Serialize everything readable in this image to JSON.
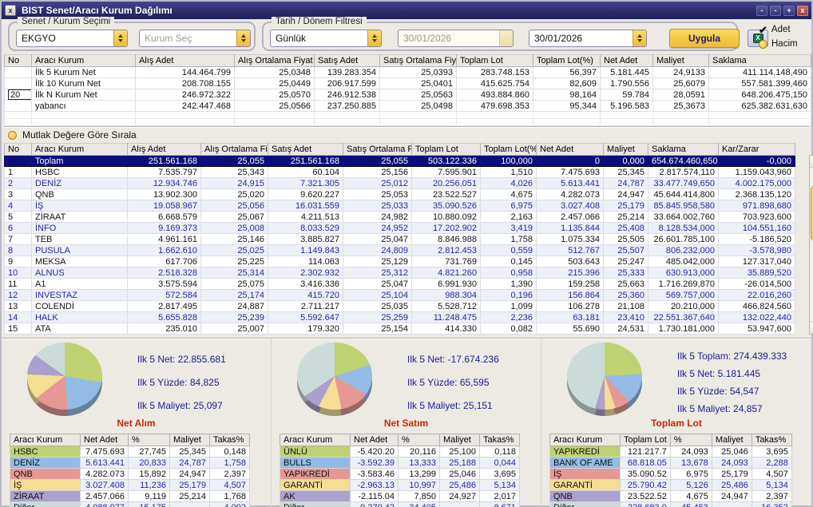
{
  "window": {
    "title": "BIST Senet/Aracı Kurum Dağılımı",
    "close_left_glyph": "x",
    "controls": {
      "minimize": "-",
      "restore": "-",
      "maximize": "+",
      "close": "x"
    }
  },
  "filters": {
    "group1_label": "Senet / Kurum Seçimi",
    "senet_value": "EKGYO",
    "kurum_placeholder": "Kurum Seç",
    "group2_label": "Tarih / Dönem Filtresi",
    "period_value": "Günlük",
    "date_from": "30/01/2026",
    "date_to": "30/01/2026",
    "apply_label": "Uygula",
    "adet_check_glyph": "✔",
    "radio_adet_label": "Adet",
    "radio_hacim_label": "Hacim"
  },
  "sort_label": "Mutlak Değere Göre Sırala",
  "summary_table": {
    "headers": [
      "No",
      "Aracı Kurum",
      "Alış Adet",
      "Alış Ortalama Fiyat",
      "Satış Adet",
      "Satış Ortalama Fiyat",
      "Toplam Lot",
      "Toplam Lot(%)",
      "Net Adet",
      "Maliyet",
      "Saklama"
    ],
    "n_value": "20",
    "rows": [
      {
        "no": "",
        "name": "İlk 5 Kurum Net",
        "values": [
          "144.464.799",
          "25,0348",
          "139.283.354",
          "25,0393",
          "283.748.153",
          "56,397",
          "5.181.445",
          "24,9133",
          "411.114.148,490"
        ]
      },
      {
        "no": "",
        "name": "İlk 10 Kurum Net",
        "values": [
          "208.708.155",
          "25,0449",
          "206.917.599",
          "25,0401",
          "415.625.754",
          "82,609",
          "1.790.556",
          "25,6079",
          "557.581.399,460"
        ]
      },
      {
        "no": "",
        "name": "İlk N Kurum Net",
        "values": [
          "246.972.322",
          "25,0570",
          "246.912.538",
          "25,0563",
          "493.884.860",
          "98,164",
          "59.784",
          "28,0591",
          "648.206.475,150"
        ],
        "n_input": true
      },
      {
        "no": "",
        "name": "yabancı",
        "values": [
          "242.447.468",
          "25,0566",
          "237.250.885",
          "25,0498",
          "479.698.353",
          "95,344",
          "5.196.583",
          "25,3673",
          "625.382.631,630"
        ]
      }
    ]
  },
  "main_table": {
    "headers": [
      "No",
      "Aracı Kurum",
      "Alış Adet",
      "Alış Ortalama Fiy",
      "Satış Adet",
      "Satış Ortalama Fi",
      "Toplam Lot",
      "Toplam Lot(%",
      "Net Adet",
      "Maliyet",
      "Saklama",
      "Kar/Zarar"
    ],
    "total_row": {
      "no": "",
      "name": "Toplam",
      "values": [
        "251.561.168",
        "25,055",
        "251.561.168",
        "25,055",
        "503.122.336",
        "100,000",
        "0",
        "0,000",
        "654.674.460,650",
        "-0,000"
      ]
    },
    "rows": [
      {
        "no": "1",
        "name": "HSBC",
        "values": [
          "7.535.797",
          "25,343",
          "60.104",
          "25,156",
          "7.595.901",
          "1,510",
          "7.475.693",
          "25,345",
          "2.817.574,110",
          "1.159.043,960"
        ]
      },
      {
        "no": "2",
        "name": "DENİZ",
        "values": [
          "12.934.746",
          "24,915",
          "7.321.305",
          "25,012",
          "20.256.051",
          "4,026",
          "5.613.441",
          "24,787",
          "33.477.749,650",
          "4.002.175,000"
        ]
      },
      {
        "no": "3",
        "name": "QNB",
        "values": [
          "13.902.300",
          "25,020",
          "9.620.227",
          "25,053",
          "23.522.527",
          "4,675",
          "4.282.073",
          "24,947",
          "45.644.414,800",
          "2.368.135,120"
        ]
      },
      {
        "no": "4",
        "name": "İŞ",
        "values": [
          "19.058.967",
          "25,056",
          "16.031.559",
          "25,033",
          "35.090.526",
          "6,975",
          "3.027.408",
          "25,179",
          "85.845.958,580",
          "971.898,680"
        ]
      },
      {
        "no": "5",
        "name": "ZİRAAT",
        "values": [
          "6.668.579",
          "25,067",
          "4.211.513",
          "24,982",
          "10.880.092",
          "2,163",
          "2.457.066",
          "25,214",
          "33.664.002,760",
          "703.923,600"
        ]
      },
      {
        "no": "6",
        "name": "İNFO",
        "values": [
          "9.169.373",
          "25,008",
          "8.033.529",
          "24,952",
          "17.202.902",
          "3,419",
          "1.135.844",
          "25,408",
          "8.128.534,000",
          "104.551,160"
        ]
      },
      {
        "no": "7",
        "name": "TEB",
        "values": [
          "4.961.161",
          "25,146",
          "3.885.827",
          "25,047",
          "8.846.988",
          "1,758",
          "1.075.334",
          "25,505",
          "26.601.785,100",
          "-5.186,520"
        ]
      },
      {
        "no": "8",
        "name": "PUSULA",
        "values": [
          "1.662.610",
          "25,025",
          "1.149.843",
          "24,809",
          "2.812.453",
          "0,559",
          "512.767",
          "25,507",
          "806.232,000",
          "-3.578,980"
        ]
      },
      {
        "no": "9",
        "name": "MEKSA",
        "values": [
          "617.706",
          "25,225",
          "114.063",
          "25,129",
          "731.769",
          "0,145",
          "503.643",
          "25,247",
          "485.042,000",
          "127.317,040"
        ]
      },
      {
        "no": "10",
        "name": "ALNUS",
        "values": [
          "2.518.328",
          "25,314",
          "2.302.932",
          "25,312",
          "4.821.260",
          "0,958",
          "215.396",
          "25,333",
          "630.913,000",
          "35.889,520"
        ]
      },
      {
        "no": "11",
        "name": "A1",
        "values": [
          "3.575.594",
          "25,075",
          "3.416.336",
          "25,047",
          "6.991.930",
          "1,390",
          "159.258",
          "25,663",
          "1.716.269,870",
          "-26.014,500"
        ]
      },
      {
        "no": "12",
        "name": "INVESTAZ",
        "values": [
          "572.584",
          "25,174",
          "415.720",
          "25,104",
          "988.304",
          "0,196",
          "156.864",
          "25,360",
          "569.757,000",
          "22.016,260"
        ]
      },
      {
        "no": "13",
        "name": "COLENDİ",
        "values": [
          "2.817.495",
          "24,887",
          "2.711.217",
          "25,035",
          "5.528.712",
          "1,099",
          "106.278",
          "21,108",
          "20.210,000",
          "466.824,560"
        ]
      },
      {
        "no": "14",
        "name": "HALK",
        "values": [
          "5.655.828",
          "25,239",
          "5.592.647",
          "25,259",
          "11.248.475",
          "2,236",
          "63.181",
          "23,410",
          "22.551.367,640",
          "132.022,440"
        ]
      },
      {
        "no": "15",
        "name": "ATA",
        "values": [
          "235.010",
          "25,007",
          "179.320",
          "25,154",
          "414.330",
          "0,082",
          "55.690",
          "24,531",
          "1.730.181,000",
          "53.947,600"
        ]
      }
    ]
  },
  "pie_colors": [
    "#bed271",
    "#94bbe6",
    "#e69894",
    "#f4de93",
    "#aca0cc",
    "#cbdbda"
  ],
  "panels": [
    {
      "title": "Net Alım",
      "stats": [
        "Ilk 5 Net: 22.855.681",
        "Ilk 5 Yüzde: 84,825",
        "Ilk 5 Maliyet: 25,097"
      ],
      "pie_values": [
        27.745,
        20.833,
        15.892,
        11.236,
        9.119,
        15.175
      ],
      "table": {
        "headers": [
          "Aracı Kurum",
          "Net Adet",
          "%",
          "Maliyet",
          "Takas%"
        ],
        "rows": [
          {
            "name": "HSBC",
            "values": [
              "7.475.693",
              "27,745",
              "25,345",
              "0,148"
            ]
          },
          {
            "name": "DENİZ",
            "values": [
              "5.613.441",
              "20,833",
              "24,787",
              "1,758"
            ]
          },
          {
            "name": "QNB",
            "values": [
              "4.282.073",
              "15,892",
              "24,947",
              "2,397"
            ]
          },
          {
            "name": "İŞ",
            "values": [
              "3.027.408",
              "11,236",
              "25,179",
              "4,507"
            ]
          },
          {
            "name": "ZİRAAT",
            "values": [
              "2.457.066",
              "9,119",
              "25,214",
              "1,768"
            ]
          },
          {
            "name": "Diğer",
            "values": [
              "4.088.977",
              "15,175",
              "",
              "4,092"
            ]
          }
        ]
      }
    },
    {
      "title": "Net Satım",
      "stats": [
        "Ilk 5 Net: -17.674.236",
        "Ilk 5 Yüzde: 65,595",
        "Ilk 5 Maliyet: 25,151"
      ],
      "pie_values": [
        20.116,
        13.333,
        13.299,
        10.997,
        7.85,
        34.405
      ],
      "table": {
        "headers": [
          "Aracı Kurum",
          "Net Adet",
          "%",
          "Maliyet",
          "Takas%"
        ],
        "rows": [
          {
            "name": "ÜNLÜ",
            "values": [
              "-5.420.20",
              "20,116",
              "25,100",
              "0,118"
            ]
          },
          {
            "name": "BULLS",
            "values": [
              "-3.592.39",
              "13,333",
              "25,188",
              "0,044"
            ]
          },
          {
            "name": "YAPIKREDİ",
            "values": [
              "-3.583.46",
              "13,299",
              "25,046",
              "3,695"
            ]
          },
          {
            "name": "GARANTİ",
            "values": [
              "-2.963.13",
              "10,997",
              "25,486",
              "5,134"
            ]
          },
          {
            "name": "AK",
            "values": [
              "-2.115.04",
              "7,850",
              "24,927",
              "2,017"
            ]
          },
          {
            "name": "Diğer",
            "values": [
              "-9.270.42",
              "34,405",
              "",
              "8,671"
            ]
          }
        ]
      }
    },
    {
      "title": "Toplam Lot",
      "stats": [
        "Ilk 5 Toplam: 274.439.333",
        "Ilk 5 Net: 5.181.445",
        "Ilk 5 Yüzde: 54,547",
        "Ilk 5 Maliyet: 24,857"
      ],
      "pie_values": [
        24.093,
        13.678,
        6.975,
        5.126,
        4.675,
        45.453
      ],
      "table": {
        "headers": [
          "Aracı Kurum",
          "Toplam Lot",
          "%",
          "Maliyet",
          "Takas%"
        ],
        "rows": [
          {
            "name": "YAPIKREDİ",
            "values": [
              "121.217.7",
              "24,093",
              "25,046",
              "3,695"
            ]
          },
          {
            "name": "BANK OF AME",
            "values": [
              "68.818.05",
              "13,678",
              "24,093",
              "2,288"
            ]
          },
          {
            "name": "İŞ",
            "values": [
              "35.090.52",
              "6,975",
              "25,179",
              "4,507"
            ]
          },
          {
            "name": "GARANTİ",
            "values": [
              "25.790.42",
              "5,126",
              "25,486",
              "5,134"
            ]
          },
          {
            "name": "QNB",
            "values": [
              "23.522.52",
              "4,675",
              "24,947",
              "2,397"
            ]
          },
          {
            "name": "Diğer",
            "values": [
              "228.683.0",
              "45,453",
              "",
              "16,352"
            ]
          }
        ]
      }
    }
  ]
}
